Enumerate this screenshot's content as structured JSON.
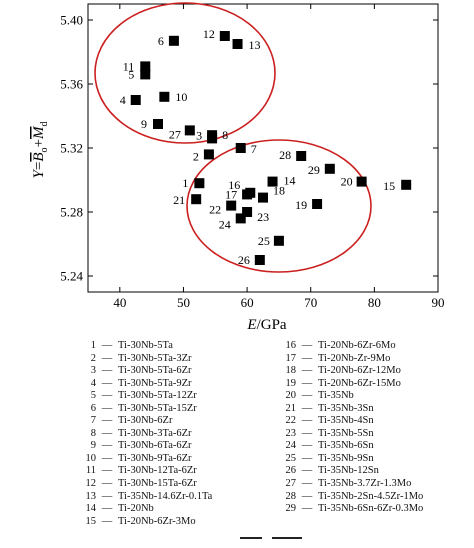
{
  "chart_data": {
    "type": "scatter",
    "xlabel": "E/GPa",
    "ylabel": "Y=Bo+Md",
    "ylabel_parts": {
      "lhs": "Y",
      "eq": "=",
      "b": "B",
      "b_sub": "o",
      "plus": "+",
      "m": "M",
      "m_sub": "d"
    },
    "xlabel_parts": {
      "var": "E",
      "unit": "/GPa"
    },
    "xlim": [
      35,
      90
    ],
    "ylim": [
      5.23,
      5.41
    ],
    "x_ticks": [
      40,
      50,
      60,
      70,
      80,
      90
    ],
    "y_ticks": [
      5.24,
      5.28,
      5.32,
      5.36,
      5.4
    ],
    "grid": false,
    "marker": "filled-square",
    "marker_color": "#000000",
    "ellipse_color": "#cc1f1f",
    "points": [
      {
        "label": "1",
        "x": 52.5,
        "y": 5.298
      },
      {
        "label": "2",
        "x": 54.0,
        "y": 5.316
      },
      {
        "label": "3",
        "x": 54.5,
        "y": 5.326
      },
      {
        "label": "4",
        "x": 42.5,
        "y": 5.35
      },
      {
        "label": "5",
        "x": 44.0,
        "y": 5.366
      },
      {
        "label": "6",
        "x": 48.5,
        "y": 5.387
      },
      {
        "label": "7",
        "x": 59.0,
        "y": 5.32
      },
      {
        "label": "8",
        "x": 54.5,
        "y": 5.328
      },
      {
        "label": "9",
        "x": 46.0,
        "y": 5.335
      },
      {
        "label": "10",
        "x": 47.0,
        "y": 5.352
      },
      {
        "label": "11",
        "x": 44.0,
        "y": 5.371
      },
      {
        "label": "12",
        "x": 56.5,
        "y": 5.39
      },
      {
        "label": "13",
        "x": 58.5,
        "y": 5.385
      },
      {
        "label": "14",
        "x": 64.0,
        "y": 5.299
      },
      {
        "label": "15",
        "x": 85.0,
        "y": 5.297
      },
      {
        "label": "16",
        "x": 60.5,
        "y": 5.292
      },
      {
        "label": "17",
        "x": 60.0,
        "y": 5.291
      },
      {
        "label": "18",
        "x": 62.5,
        "y": 5.289
      },
      {
        "label": "19",
        "x": 71.0,
        "y": 5.285
      },
      {
        "label": "20",
        "x": 78.0,
        "y": 5.299
      },
      {
        "label": "21",
        "x": 52.0,
        "y": 5.288
      },
      {
        "label": "22",
        "x": 57.5,
        "y": 5.284
      },
      {
        "label": "23",
        "x": 60.0,
        "y": 5.28
      },
      {
        "label": "24",
        "x": 59.0,
        "y": 5.276
      },
      {
        "label": "25",
        "x": 65.0,
        "y": 5.262
      },
      {
        "label": "26",
        "x": 62.0,
        "y": 5.25
      },
      {
        "label": "27",
        "x": 51.0,
        "y": 5.331
      },
      {
        "label": "28",
        "x": 68.5,
        "y": 5.315
      },
      {
        "label": "29",
        "x": 73.0,
        "y": 5.307
      }
    ],
    "legend": [
      {
        "num": "1",
        "text": "Ti-30Nb-5Ta"
      },
      {
        "num": "2",
        "text": "Ti-30Nb-5Ta-3Zr"
      },
      {
        "num": "3",
        "text": "Ti-30Nb-5Ta-6Zr"
      },
      {
        "num": "4",
        "text": "Ti-30Nb-5Ta-9Zr"
      },
      {
        "num": "5",
        "text": "Ti-30Nb-5Ta-12Zr"
      },
      {
        "num": "6",
        "text": "Ti-30Nb-5Ta-15Zr"
      },
      {
        "num": "7",
        "text": "Ti-30Nb-6Zr"
      },
      {
        "num": "8",
        "text": "Ti-30Nb-3Ta-6Zr"
      },
      {
        "num": "9",
        "text": "Ti-30Nb-6Ta-6Zr"
      },
      {
        "num": "10",
        "text": "Ti-30Nb-9Ta-6Zr"
      },
      {
        "num": "11",
        "text": "Ti-30Nb-12Ta-6Zr"
      },
      {
        "num": "12",
        "text": "Ti-30Nb-15Ta-6Zr"
      },
      {
        "num": "13",
        "text": "Ti-35Nb-14.6Zr-0.1Ta"
      },
      {
        "num": "14",
        "text": "Ti-20Nb"
      },
      {
        "num": "15",
        "text": "Ti-20Nb-6Zr-3Mo"
      },
      {
        "num": "16",
        "text": "Ti-20Nb-6Zr-6Mo"
      },
      {
        "num": "17",
        "text": "Ti-20Nb-Zr-9Mo"
      },
      {
        "num": "18",
        "text": "Ti-20Nb-6Zr-12Mo"
      },
      {
        "num": "19",
        "text": "Ti-20Nb-6Zr-15Mo"
      },
      {
        "num": "20",
        "text": "Ti-35Nb"
      },
      {
        "num": "21",
        "text": "Ti-35Nb-3Sn"
      },
      {
        "num": "22",
        "text": "Ti-35Nb-4Sn"
      },
      {
        "num": "23",
        "text": "Ti-35Nb-5Sn"
      },
      {
        "num": "24",
        "text": "Ti-35Nb-6Sn"
      },
      {
        "num": "25",
        "text": "Ti-35Nb-9Sn"
      },
      {
        "num": "26",
        "text": "Ti-35Nb-12Sn"
      },
      {
        "num": "27",
        "text": "Ti-35Nb-3.7Zr-1.3Mo"
      },
      {
        "num": "28",
        "text": "Ti-35Nb-2Sn-4.5Zr-1Mo"
      },
      {
        "num": "29",
        "text": "Ti-35Nb-6Sn-6Zr-0.3Mo"
      }
    ],
    "legend_dash": "—"
  }
}
